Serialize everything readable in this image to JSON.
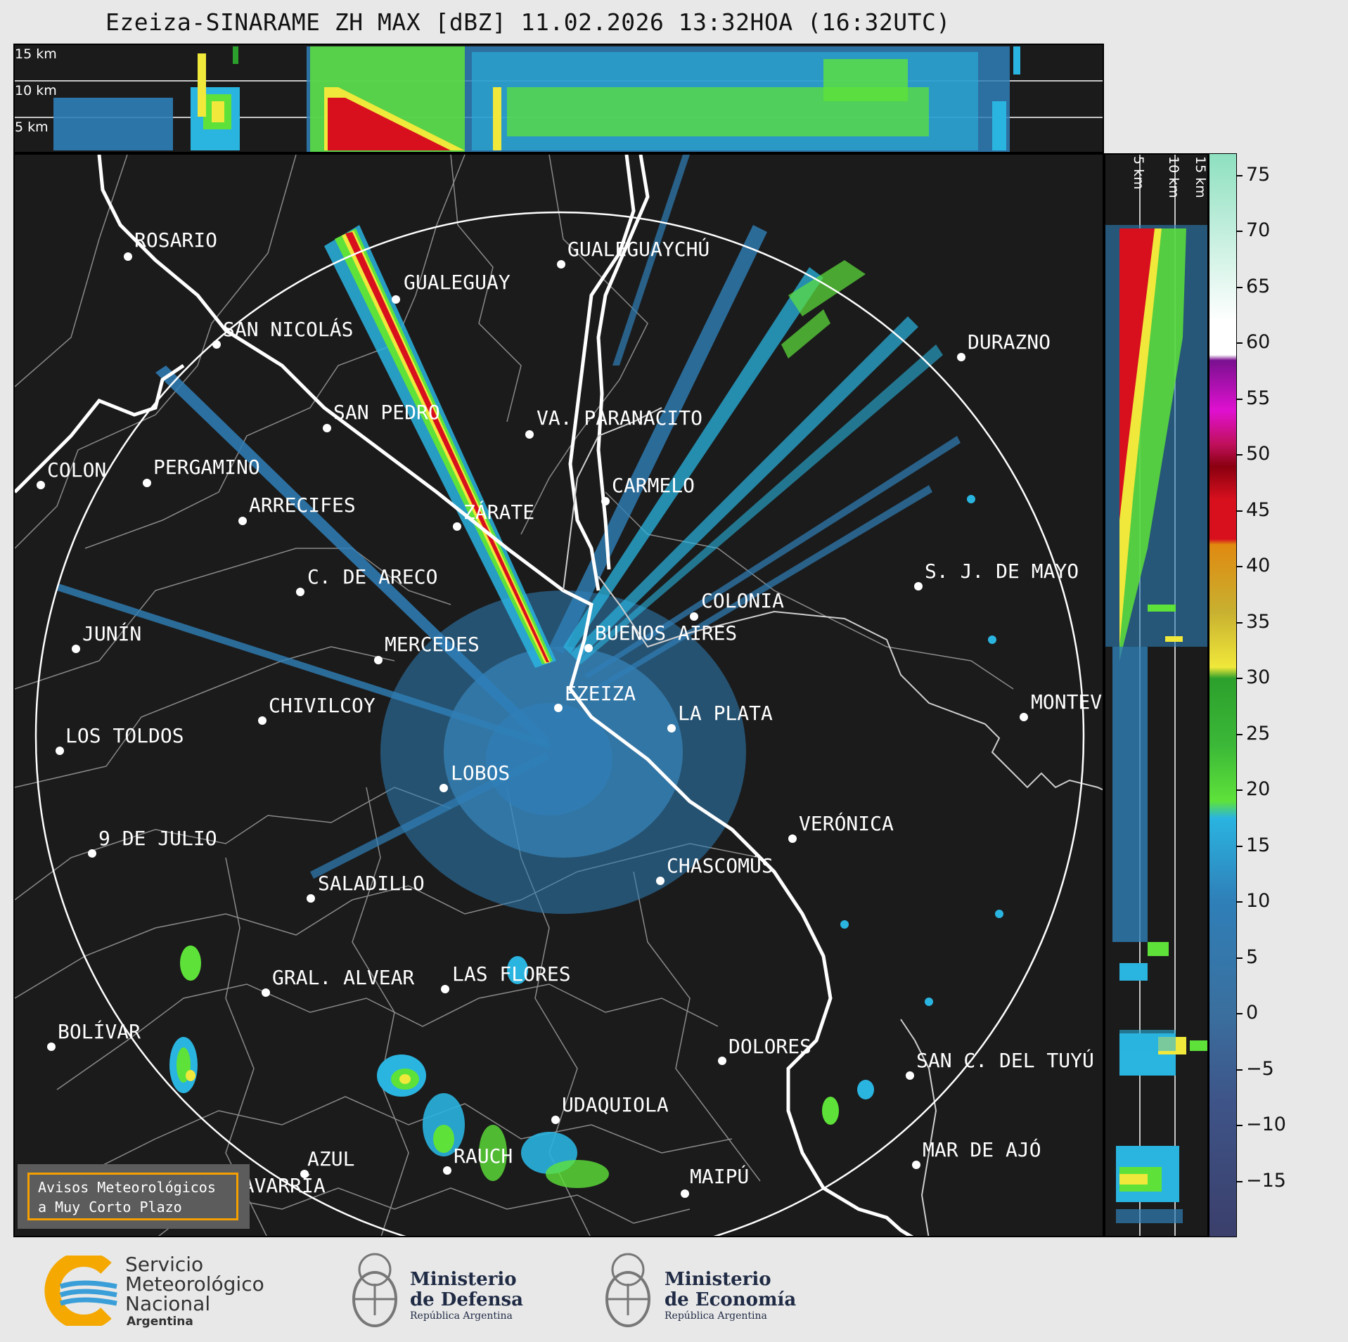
{
  "title": "Ezeiza-SINARAME ZH MAX [dBZ] 11.02.2026 13:32HOA (16:32UTC)",
  "top_panel": {
    "km_labels": [
      "15 km",
      "10 km",
      "5 km"
    ]
  },
  "side_panel": {
    "km_labels": [
      "5 km",
      "10 km",
      "15 km"
    ]
  },
  "cities": [
    {
      "name": "ROSARIO"
    },
    {
      "name": "GUALEGUAYCHÚ"
    },
    {
      "name": "GUALEGUAY"
    },
    {
      "name": "SAN NICOLÁS"
    },
    {
      "name": "DURAZNO"
    },
    {
      "name": "SAN PEDRO"
    },
    {
      "name": "VA. PARANACITO"
    },
    {
      "name": "COLON"
    },
    {
      "name": "PERGAMINO"
    },
    {
      "name": "CARMELO"
    },
    {
      "name": "ARRECIFES"
    },
    {
      "name": "ZÁRATE"
    },
    {
      "name": "S. J. DE MAYO"
    },
    {
      "name": "C. DE ARECO"
    },
    {
      "name": "COLONIA"
    },
    {
      "name": "JUNÍN"
    },
    {
      "name": "BUENOS AIRES"
    },
    {
      "name": "MERCEDES"
    },
    {
      "name": "EZEIZA"
    },
    {
      "name": "MONTEV"
    },
    {
      "name": "CHIVILCOY"
    },
    {
      "name": "LA PLATA"
    },
    {
      "name": "LOS TOLDOS"
    },
    {
      "name": "LOBOS"
    },
    {
      "name": "VERÓNICA"
    },
    {
      "name": "9 DE JULIO"
    },
    {
      "name": "CHASCOMÚS"
    },
    {
      "name": "SALADILLO"
    },
    {
      "name": "GRAL. ALVEAR"
    },
    {
      "name": "LAS FLORES"
    },
    {
      "name": "BOLÍVAR"
    },
    {
      "name": "DOLORES"
    },
    {
      "name": "SAN C. DEL TUYÚ"
    },
    {
      "name": "UDAQUIOLA"
    },
    {
      "name": "MAR DE AJÓ"
    },
    {
      "name": "AZUL"
    },
    {
      "name": "RAUCH"
    },
    {
      "name": "MAIPÚ"
    },
    {
      "name": "OLAVARRÍA"
    }
  ],
  "colorbar": {
    "unit": "dBZ",
    "range": [
      -20,
      77
    ],
    "ticks": [
      "75",
      "70",
      "65",
      "60",
      "55",
      "50",
      "45",
      "40",
      "35",
      "30",
      "25",
      "20",
      "15",
      "10",
      "5",
      "0",
      "−5",
      "−10",
      "−15"
    ],
    "colors": {
      "low": "#3b3f6b",
      "blue": "#2f7fb8",
      "cyan": "#2ab4e0",
      "green": "#2ca02c",
      "lightgreen": "#5ee23a",
      "yellow": "#f0e83a",
      "orange": "#e08a10",
      "red": "#d8101e",
      "darkred": "#8a0010",
      "magenta": "#e010d0",
      "purple": "#7a1090",
      "white": "#ffffff",
      "mint": "#8ee0c0"
    }
  },
  "warning_box": {
    "line1": "Avisos Meteorológicos",
    "line2": "a Muy Corto Plazo",
    "border_color": "#f5a000"
  },
  "logos": {
    "smn": {
      "line1": "Servicio",
      "line2": "Meteorológico",
      "line3": "Nacional",
      "country": "Argentina"
    },
    "defensa": {
      "line1": "Ministerio",
      "line2": "de Defensa",
      "sub": "República Argentina"
    },
    "economia": {
      "line1": "Ministerio",
      "line2": "de Economía",
      "sub": "República Argentina"
    }
  }
}
